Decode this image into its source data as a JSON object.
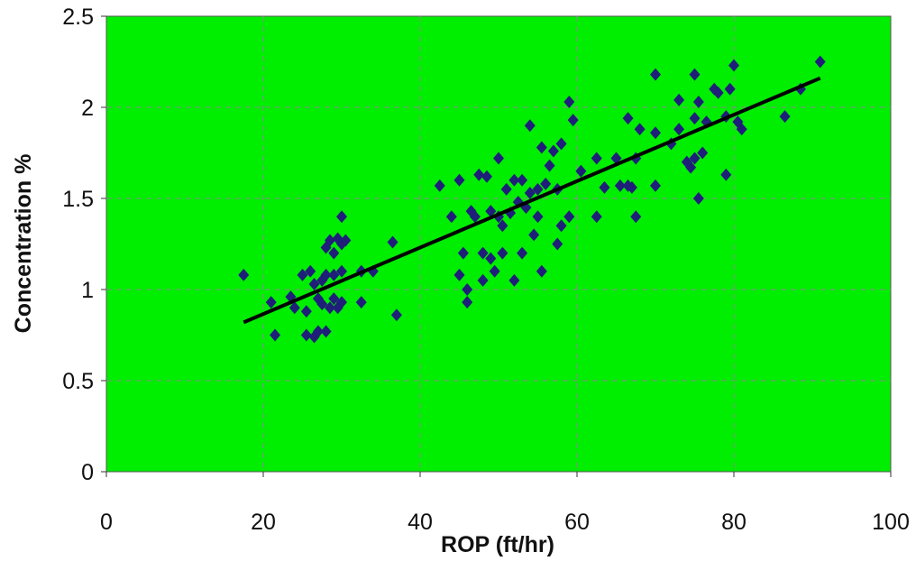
{
  "chart_data": {
    "type": "scatter",
    "title": "",
    "xlabel": "ROP (ft/hr)",
    "ylabel": "Concentration %",
    "xlim": [
      0,
      100
    ],
    "ylim": [
      0,
      2.5
    ],
    "x_ticks": [
      "0",
      "20",
      "40",
      "60",
      "80",
      "100"
    ],
    "y_ticks": [
      "0",
      "0.5",
      "1",
      "1.5",
      "2",
      "2.5"
    ],
    "grid": true,
    "legend": "none",
    "colors": {
      "plot_background": "#00ee00",
      "marker": "#1f1f7a",
      "trendline": "#000000",
      "gridline": "#8a8a8a"
    },
    "trendline": {
      "x": [
        17.5,
        91
      ],
      "y": [
        0.82,
        2.16
      ]
    },
    "points": [
      [
        17.5,
        1.08
      ],
      [
        21,
        0.93
      ],
      [
        21.5,
        0.75
      ],
      [
        23.5,
        0.96
      ],
      [
        24,
        0.9
      ],
      [
        25,
        1.08
      ],
      [
        25.5,
        0.88
      ],
      [
        25.5,
        0.75
      ],
      [
        26,
        1.1
      ],
      [
        26.5,
        0.74
      ],
      [
        26.5,
        1.03
      ],
      [
        27,
        0.95
      ],
      [
        27,
        0.77
      ],
      [
        27.5,
        1.05
      ],
      [
        27.5,
        0.92
      ],
      [
        28,
        1.23
      ],
      [
        28,
        0.77
      ],
      [
        28,
        1.08
      ],
      [
        28.5,
        1.27
      ],
      [
        28.5,
        0.9
      ],
      [
        29,
        1.2
      ],
      [
        29,
        1.08
      ],
      [
        29,
        0.95
      ],
      [
        29.5,
        1.28
      ],
      [
        29.5,
        0.9
      ],
      [
        30,
        1.25
      ],
      [
        30,
        1.4
      ],
      [
        30,
        1.1
      ],
      [
        30,
        0.93
      ],
      [
        30.5,
        1.27
      ],
      [
        32.5,
        0.93
      ],
      [
        32.5,
        1.1
      ],
      [
        34,
        1.1
      ],
      [
        36.5,
        1.26
      ],
      [
        37,
        0.86
      ],
      [
        42.5,
        1.57
      ],
      [
        44,
        1.4
      ],
      [
        45,
        1.6
      ],
      [
        45,
        1.08
      ],
      [
        45.5,
        1.2
      ],
      [
        46,
        1.0
      ],
      [
        46,
        0.93
      ],
      [
        46.5,
        1.43
      ],
      [
        47,
        1.4
      ],
      [
        47.5,
        1.63
      ],
      [
        48,
        1.05
      ],
      [
        48,
        1.2
      ],
      [
        48.5,
        1.62
      ],
      [
        49,
        1.43
      ],
      [
        49,
        1.17
      ],
      [
        49.5,
        1.1
      ],
      [
        50,
        1.4
      ],
      [
        50,
        1.72
      ],
      [
        50.5,
        1.2
      ],
      [
        50.5,
        1.35
      ],
      [
        51,
        1.55
      ],
      [
        51.5,
        1.42
      ],
      [
        52,
        1.6
      ],
      [
        52,
        1.05
      ],
      [
        52.5,
        1.48
      ],
      [
        53,
        1.2
      ],
      [
        53,
        1.6
      ],
      [
        53.5,
        1.45
      ],
      [
        54,
        1.9
      ],
      [
        54,
        1.53
      ],
      [
        54.5,
        1.3
      ],
      [
        55,
        1.55
      ],
      [
        55,
        1.4
      ],
      [
        55.5,
        1.78
      ],
      [
        55.5,
        1.1
      ],
      [
        56,
        1.58
      ],
      [
        56.5,
        1.68
      ],
      [
        57,
        1.76
      ],
      [
        57.5,
        1.25
      ],
      [
        57.5,
        1.55
      ],
      [
        58,
        1.35
      ],
      [
        58,
        1.8
      ],
      [
        59,
        2.03
      ],
      [
        59,
        1.4
      ],
      [
        59.5,
        1.93
      ],
      [
        60.5,
        1.65
      ],
      [
        62.5,
        1.72
      ],
      [
        62.5,
        1.4
      ],
      [
        63.5,
        1.56
      ],
      [
        65,
        1.72
      ],
      [
        65.5,
        1.57
      ],
      [
        66.5,
        1.57
      ],
      [
        66.5,
        1.94
      ],
      [
        67,
        1.56
      ],
      [
        67.5,
        1.72
      ],
      [
        67.5,
        1.4
      ],
      [
        68,
        1.88
      ],
      [
        70,
        2.18
      ],
      [
        70,
        1.86
      ],
      [
        70,
        1.57
      ],
      [
        72,
        1.8
      ],
      [
        73,
        2.04
      ],
      [
        73,
        1.88
      ],
      [
        74,
        1.7
      ],
      [
        74.5,
        1.67
      ],
      [
        75,
        1.94
      ],
      [
        75,
        1.72
      ],
      [
        75,
        2.18
      ],
      [
        75.5,
        2.03
      ],
      [
        75.5,
        1.5
      ],
      [
        76,
        1.75
      ],
      [
        76.5,
        1.92
      ],
      [
        77.5,
        2.1
      ],
      [
        78,
        2.08
      ],
      [
        79,
        1.63
      ],
      [
        79,
        1.95
      ],
      [
        79.5,
        2.1
      ],
      [
        80,
        2.23
      ],
      [
        80.5,
        1.92
      ],
      [
        81,
        1.88
      ],
      [
        86.5,
        1.95
      ],
      [
        88.5,
        2.1
      ],
      [
        91,
        2.25
      ]
    ]
  }
}
